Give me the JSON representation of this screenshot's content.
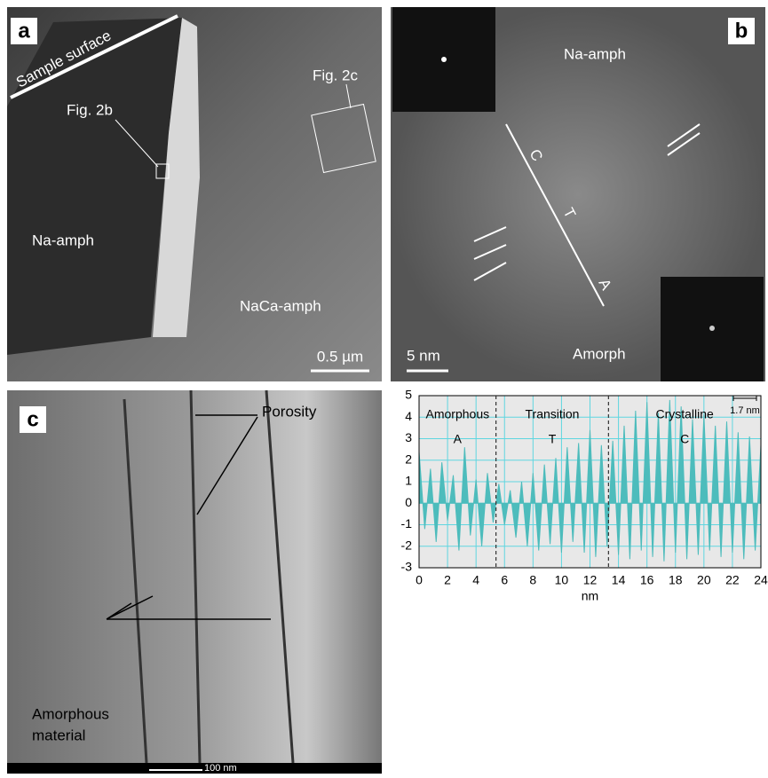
{
  "panels": {
    "a": {
      "label": "a",
      "sample_surface": "Sample surface",
      "fig2b": "Fig. 2b",
      "fig2c": "Fig. 2c",
      "na_amph": "Na-amph",
      "naca_amph": "NaCa-amph",
      "scale": "0.5 µm"
    },
    "b": {
      "label": "b",
      "na_amph": "Na-amph",
      "c": "C",
      "t": "T",
      "a": "A",
      "scale": "5 nm",
      "amorph": "Amorph"
    },
    "c": {
      "label": "c",
      "porosity": "Porosity",
      "amorphous_1": "Amorphous",
      "amorphous_2": "material",
      "scale": "100 nm"
    }
  },
  "chart_data": {
    "type": "area",
    "xlabel": "nm",
    "x": [
      0,
      0.4,
      0.8,
      1.2,
      1.6,
      2,
      2.4,
      2.8,
      3.2,
      3.6,
      4,
      4.4,
      4.8,
      5.2,
      5.6,
      6,
      6.4,
      6.8,
      7.2,
      7.6,
      8,
      8.4,
      8.8,
      9.2,
      9.6,
      10,
      10.4,
      10.8,
      11.2,
      11.6,
      12,
      12.4,
      12.8,
      13.2,
      13.6,
      14,
      14.4,
      14.8,
      15.2,
      15.6,
      16,
      16.4,
      16.8,
      17.2,
      17.6,
      18,
      18.4,
      18.8,
      19.2,
      19.6,
      20,
      20.4,
      20.8,
      21.2,
      21.6,
      22,
      22.4,
      22.8,
      23.2,
      23.6,
      24
    ],
    "series": [
      {
        "color": "#4dbcbc",
        "values": [
          2.4,
          -1.2,
          1.6,
          -1.8,
          1.9,
          -0.8,
          1.3,
          -2.2,
          2.6,
          -1.5,
          1.1,
          -2.0,
          1.4,
          -0.9,
          0.9,
          -1.0,
          0.6,
          -1.6,
          1.0,
          -2.0,
          1.4,
          -2.2,
          1.8,
          -1.9,
          2.1,
          -2.3,
          2.6,
          -1.8,
          2.8,
          -2.3,
          3.4,
          -2.5,
          2.7,
          -2.0,
          2.9,
          -2.4,
          3.6,
          -2.6,
          4.3,
          -2.2,
          4.7,
          -2.5,
          4.2,
          -2.7,
          4.8,
          -2.3,
          4.5,
          -2.6,
          3.9,
          -2.4,
          4.1,
          -2.2,
          3.6,
          -2.5,
          3.8,
          -2.3,
          3.3,
          -2.6,
          3.1,
          -2.2,
          2.7
        ]
      }
    ],
    "xlim": [
      0,
      24
    ],
    "ylim": [
      -3,
      5
    ],
    "xticks": [
      0,
      2,
      4,
      6,
      8,
      10,
      12,
      14,
      16,
      18,
      20,
      22,
      24
    ],
    "yticks": [
      -3,
      -2,
      -1,
      0,
      1,
      2,
      3,
      4,
      5
    ],
    "grid": true,
    "grid_color": "#5fd6e0",
    "background": "#e8e8e8",
    "dividers": [
      5.4,
      13.3
    ],
    "regions": [
      {
        "name": "Amorphous",
        "letter": "A"
      },
      {
        "name": "Transition",
        "letter": "T"
      },
      {
        "name": "Crystalline",
        "letter": "C"
      }
    ],
    "scale_label": "1.7 nm"
  }
}
